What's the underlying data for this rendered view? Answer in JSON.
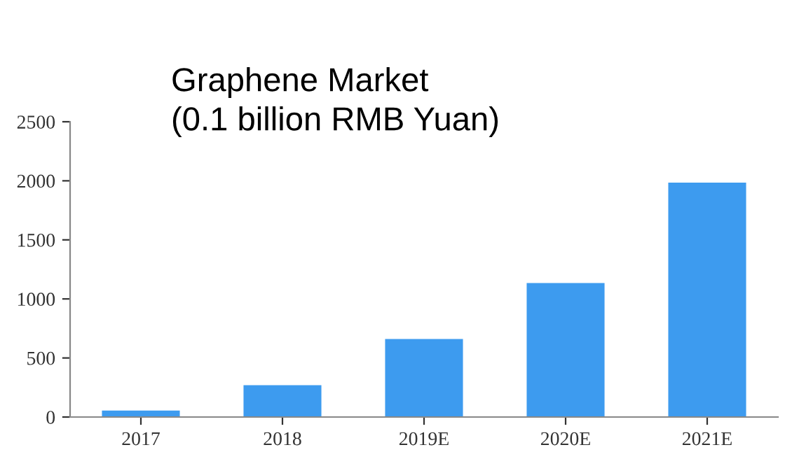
{
  "chart_data": {
    "type": "bar",
    "title": "Graphene Market\n(0.1 billion RMB Yuan)",
    "categories": [
      "2017",
      "2018",
      "2019E",
      "2020E",
      "2021E"
    ],
    "values": [
      55,
      270,
      660,
      1135,
      1985
    ],
    "color": "#3d9bef",
    "ylim": [
      0,
      2500
    ],
    "yticks": [
      0,
      500,
      1000,
      1500,
      2000,
      2500
    ],
    "grid": false,
    "legend": false
  }
}
